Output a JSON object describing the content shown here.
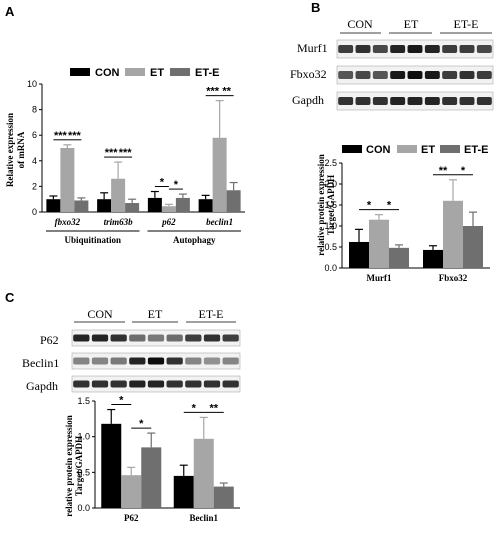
{
  "panels": {
    "a": "A",
    "b": "B",
    "c": "C"
  },
  "colors": {
    "CON": "#000000",
    "ET": "#a6a6a6",
    "ET-E": "#6f6f6f"
  },
  "groups": [
    "CON",
    "ET",
    "ET-E"
  ],
  "blots": {
    "b": {
      "headers": [
        "CON",
        "ET",
        "ET-E"
      ],
      "rows": [
        "Murf1",
        "Fbxo32",
        "Gapdh"
      ]
    },
    "c": {
      "headers": [
        "CON",
        "ET",
        "ET-E"
      ],
      "rows": [
        "P62",
        "Beclin1",
        "Gapdh"
      ]
    }
  },
  "chart_data": [
    {
      "id": "A",
      "type": "bar",
      "ylabel": "Relative expression of mRNA",
      "ylim": [
        0,
        10
      ],
      "yticks": [
        0,
        2,
        4,
        6,
        8,
        10
      ],
      "categories": [
        "fbxo32",
        "trim63b",
        "p62",
        "beclin1"
      ],
      "category_groups": [
        {
          "label": "Ubiquitination",
          "members": [
            "fbxo32",
            "trim63b"
          ]
        },
        {
          "label": "Autophagy",
          "members": [
            "p62",
            "beclin1"
          ]
        }
      ],
      "legend": [
        "CON",
        "ET",
        "ET-E"
      ],
      "series": [
        {
          "name": "CON",
          "values": [
            1.0,
            1.0,
            1.1,
            1.0
          ],
          "errors": [
            0.25,
            0.5,
            0.5,
            0.3
          ]
        },
        {
          "name": "ET",
          "values": [
            5.0,
            2.6,
            0.45,
            5.8
          ],
          "errors": [
            0.25,
            1.3,
            0.15,
            2.9
          ]
        },
        {
          "name": "ET-E",
          "values": [
            0.9,
            0.7,
            1.1,
            1.7
          ],
          "errors": [
            0.2,
            0.3,
            0.3,
            0.6
          ]
        }
      ],
      "significance": [
        {
          "category": "fbxo32",
          "pair": [
            "CON",
            "ET"
          ],
          "label": "***"
        },
        {
          "category": "fbxo32",
          "pair": [
            "ET",
            "ET-E"
          ],
          "label": "***"
        },
        {
          "category": "trim63b",
          "pair": [
            "CON",
            "ET"
          ],
          "label": "***"
        },
        {
          "category": "trim63b",
          "pair": [
            "ET",
            "ET-E"
          ],
          "label": "***"
        },
        {
          "category": "p62",
          "pair": [
            "CON",
            "ET"
          ],
          "label": "*"
        },
        {
          "category": "p62",
          "pair": [
            "ET",
            "ET-E"
          ],
          "label": "*"
        },
        {
          "category": "beclin1",
          "pair": [
            "CON",
            "ET"
          ],
          "label": "***"
        },
        {
          "category": "beclin1",
          "pair": [
            "ET",
            "ET-E"
          ],
          "label": "**"
        }
      ]
    },
    {
      "id": "B",
      "type": "bar",
      "ylabel": "relative protein expression Target/GAPDH",
      "ylim": [
        0,
        2.5
      ],
      "yticks": [
        0.0,
        0.5,
        1.0,
        1.5,
        2.0,
        2.5
      ],
      "categories": [
        "Murf1",
        "Fbxo32"
      ],
      "legend": [
        "CON",
        "ET",
        "ET-E"
      ],
      "series": [
        {
          "name": "CON",
          "values": [
            0.62,
            0.43
          ],
          "errors": [
            0.3,
            0.1
          ]
        },
        {
          "name": "ET",
          "values": [
            1.15,
            1.6
          ],
          "errors": [
            0.12,
            0.5
          ]
        },
        {
          "name": "ET-E",
          "values": [
            0.48,
            1.0
          ],
          "errors": [
            0.07,
            0.33
          ]
        }
      ],
      "significance": [
        {
          "category": "Murf1",
          "pair": [
            "CON",
            "ET"
          ],
          "label": "*"
        },
        {
          "category": "Murf1",
          "pair": [
            "ET",
            "ET-E"
          ],
          "label": "*"
        },
        {
          "category": "Fbxo32",
          "pair": [
            "CON",
            "ET"
          ],
          "label": "**"
        },
        {
          "category": "Fbxo32",
          "pair": [
            "ET",
            "ET-E"
          ],
          "label": "*"
        }
      ]
    },
    {
      "id": "C",
      "type": "bar",
      "ylabel": "relative protein expression Target/GAPDH",
      "ylim": [
        0,
        1.5
      ],
      "yticks": [
        0.0,
        0.5,
        1.0,
        1.5
      ],
      "categories": [
        "P62",
        "Beclin1"
      ],
      "legend": [
        "CON",
        "ET",
        "ET-E"
      ],
      "series": [
        {
          "name": "CON",
          "values": [
            1.18,
            0.45
          ],
          "errors": [
            0.2,
            0.15
          ]
        },
        {
          "name": "ET",
          "values": [
            0.46,
            0.97
          ],
          "errors": [
            0.11,
            0.3
          ]
        },
        {
          "name": "ET-E",
          "values": [
            0.85,
            0.3
          ],
          "errors": [
            0.2,
            0.05
          ]
        }
      ],
      "significance": [
        {
          "category": "P62",
          "pair": [
            "CON",
            "ET"
          ],
          "label": "*"
        },
        {
          "category": "P62",
          "pair": [
            "ET",
            "ET-E"
          ],
          "label": "*"
        },
        {
          "category": "Beclin1",
          "pair": [
            "CON",
            "ET"
          ],
          "label": "*"
        },
        {
          "category": "Beclin1",
          "pair": [
            "ET",
            "ET-E"
          ],
          "label": "**"
        }
      ]
    }
  ]
}
